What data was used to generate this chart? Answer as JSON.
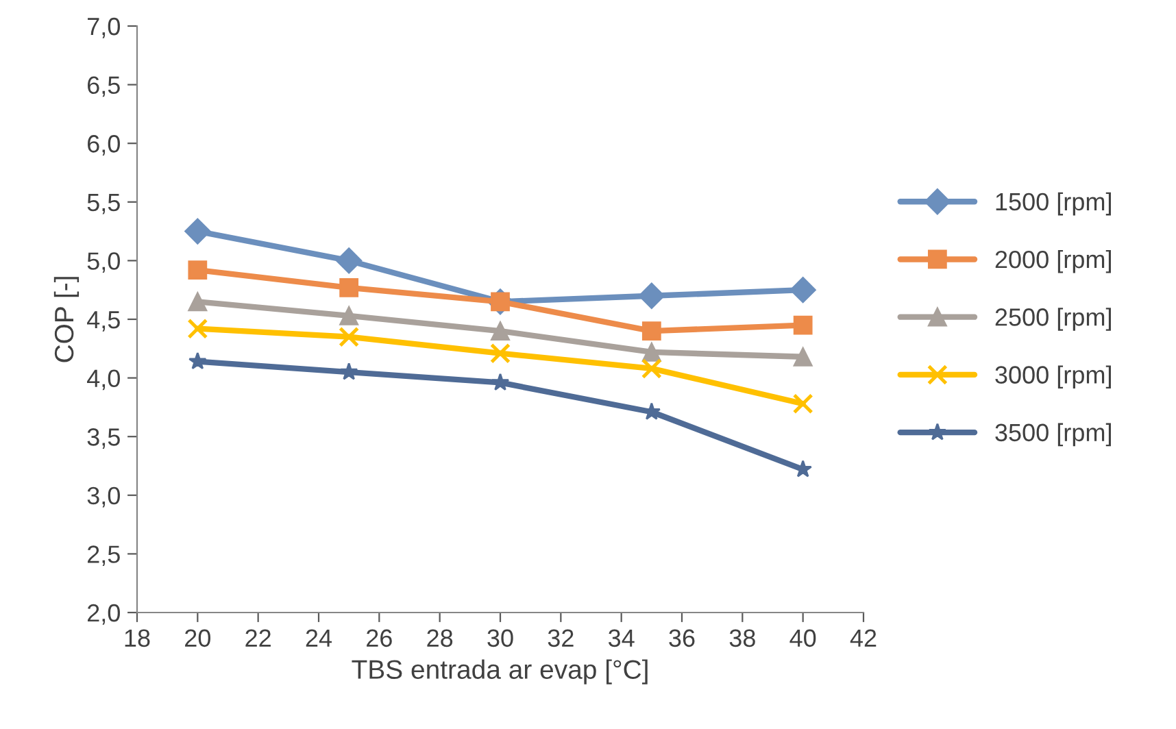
{
  "chart_data": {
    "type": "line",
    "xlabel": "TBS entrada ar evap [°C]",
    "ylabel": "COP [-]",
    "x": [
      20,
      25,
      30,
      35,
      40
    ],
    "xlim": [
      18,
      42
    ],
    "xticks": [
      18,
      20,
      22,
      24,
      26,
      28,
      30,
      32,
      34,
      36,
      38,
      40,
      42
    ],
    "ylim": [
      2.0,
      7.0
    ],
    "yticks": [
      {
        "value": 2.0,
        "label": "2,0"
      },
      {
        "value": 2.5,
        "label": "2,5"
      },
      {
        "value": 3.0,
        "label": "3,0"
      },
      {
        "value": 3.5,
        "label": "3,5"
      },
      {
        "value": 4.0,
        "label": "4,0"
      },
      {
        "value": 4.5,
        "label": "4,5"
      },
      {
        "value": 5.0,
        "label": "5,0"
      },
      {
        "value": 5.5,
        "label": "5,5"
      },
      {
        "value": 6.0,
        "label": "6,0"
      },
      {
        "value": 6.5,
        "label": "6,5"
      },
      {
        "value": 7.0,
        "label": "7,0"
      }
    ],
    "grid": false,
    "legend": "right",
    "line_style": "solid",
    "series": [
      {
        "name": "1500 [rpm]",
        "color": "#6b8fbd",
        "marker": "diamond",
        "values": [
          5.25,
          5.0,
          4.65,
          4.7,
          4.75
        ]
      },
      {
        "name": "2000 [rpm]",
        "color": "#ed8b4a",
        "marker": "square",
        "values": [
          4.92,
          4.77,
          4.65,
          4.4,
          4.45
        ]
      },
      {
        "name": "2500 [rpm]",
        "color": "#a9a19b",
        "marker": "triangle",
        "values": [
          4.65,
          4.53,
          4.4,
          4.22,
          4.18
        ]
      },
      {
        "name": "3000 [rpm]",
        "color": "#ffc000",
        "marker": "cross",
        "values": [
          4.42,
          4.35,
          4.21,
          4.08,
          3.78
        ]
      },
      {
        "name": "3500 [rpm]",
        "color": "#4f6b96",
        "marker": "star",
        "values": [
          4.14,
          4.05,
          3.96,
          3.71,
          3.22
        ]
      }
    ]
  }
}
